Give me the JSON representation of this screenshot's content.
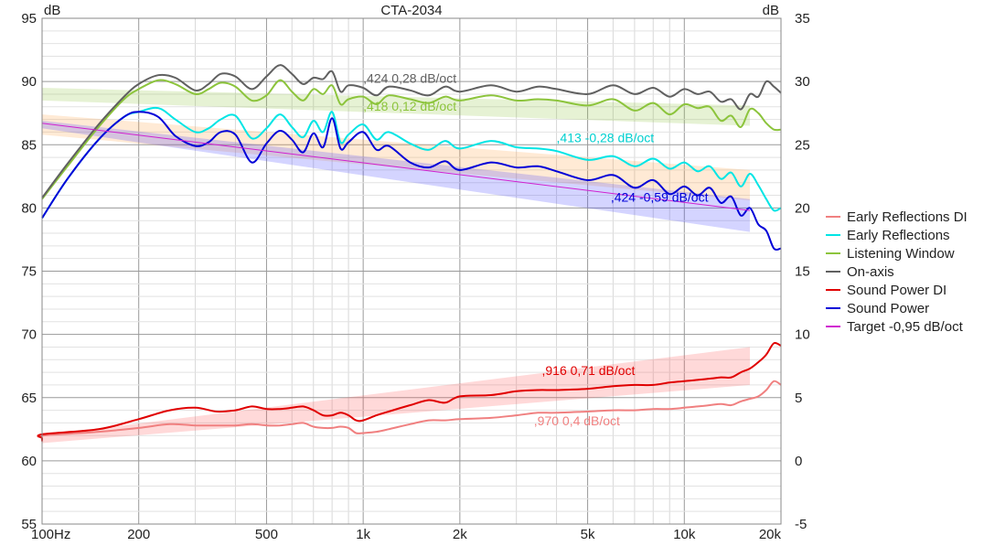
{
  "chart_data": {
    "type": "line",
    "title": "CTA-2034",
    "left_unit": "dB",
    "right_unit": "dB",
    "x_scale": "log",
    "xlim": [
      20,
      20000
    ],
    "ylim_left": [
      55,
      95
    ],
    "ylim_right": [
      -5,
      35
    ],
    "x_ticks": [
      {
        "v": 100,
        "label": "100Hz"
      },
      {
        "v": 200,
        "label": "200"
      },
      {
        "v": 500,
        "label": "500"
      },
      {
        "v": 1000,
        "label": "1k"
      },
      {
        "v": 2000,
        "label": "2k"
      },
      {
        "v": 5000,
        "label": "5k"
      },
      {
        "v": 10000,
        "label": "10k"
      },
      {
        "v": 20000,
        "label": "20k"
      }
    ],
    "y_left_ticks": [
      "95",
      "90",
      "85",
      "80",
      "75",
      "70",
      "65",
      "60",
      "55"
    ],
    "y_right_ticks": [
      "35",
      "30",
      "25",
      "20",
      "15",
      "10",
      "5",
      "0",
      "-5"
    ],
    "grid": true,
    "legend_position": "right",
    "legend": [
      {
        "label": "Early Reflections DI",
        "color": "#f08080"
      },
      {
        "label": "Early Reflections",
        "color": "#00e5e5"
      },
      {
        "label": "Listening Window",
        "color": "#8cc43c"
      },
      {
        "label": "On-axis",
        "color": "#606060"
      },
      {
        "label": "Sound Power DI",
        "color": "#e00000"
      },
      {
        "label": "Sound Power",
        "color": "#0000d8"
      },
      {
        "label": "Target -0,95 dB/oct",
        "color": "#d020d0"
      }
    ],
    "annotations": [
      {
        "text": ",424  0,28 dB/oct",
        "color": "#606060",
        "x": 1000,
        "y": 89.9
      },
      {
        "text": ",418  0,12 dB/oct",
        "color": "#8cc43c",
        "x": 1000,
        "y": 87.7
      },
      {
        "text": ",413  -0,28 dB/oct",
        "color": "#00d0d0",
        "x": 4000,
        "y": 85.2
      },
      {
        "text": ",424  -0,59 dB/oct",
        "color": "#0000d8",
        "x": 5900,
        "y": 80.5
      },
      {
        "text": ",916  0,71 dB/oct",
        "color": "#e00000",
        "x": 3600,
        "y": 66.8
      },
      {
        "text": ",970  0,4 dB/oct",
        "color": "#f08080",
        "x": 3400,
        "y": 62.8
      }
    ],
    "series": [
      {
        "name": "On-axis",
        "axis": "left",
        "color": "#606060",
        "x": [
          100,
          120,
          150,
          180,
          200,
          230,
          260,
          300,
          330,
          360,
          400,
          450,
          500,
          550,
          600,
          650,
          700,
          750,
          800,
          850,
          900,
          1000,
          1100,
          1200,
          1400,
          1600,
          1800,
          2000,
          2500,
          3000,
          3500,
          4000,
          5000,
          6000,
          7000,
          8000,
          9000,
          10000,
          11000,
          12000,
          13000,
          14000,
          15000,
          16000,
          17000,
          18000,
          19000,
          20000
        ],
        "y": [
          80.8,
          83.5,
          86.6,
          88.8,
          89.8,
          90.5,
          90.3,
          89.3,
          89.8,
          90.6,
          90.4,
          89.4,
          90.4,
          91.3,
          90.6,
          89.8,
          90.3,
          90.2,
          90.8,
          89.2,
          89.7,
          89.5,
          88.9,
          89.6,
          89.3,
          88.9,
          89.6,
          89.2,
          89.7,
          89.2,
          89.6,
          89.4,
          89.0,
          89.7,
          89.0,
          89.5,
          88.8,
          89.4,
          89.0,
          89.2,
          88.4,
          88.6,
          87.8,
          89.0,
          88.8,
          90.0,
          89.6,
          89.1
        ]
      },
      {
        "name": "Listening Window",
        "axis": "left",
        "color": "#8cc43c",
        "x": [
          100,
          120,
          150,
          180,
          200,
          230,
          260,
          300,
          330,
          360,
          400,
          450,
          500,
          550,
          600,
          650,
          700,
          750,
          800,
          850,
          900,
          1000,
          1100,
          1200,
          1400,
          1600,
          1800,
          2000,
          2500,
          3000,
          3500,
          4000,
          5000,
          6000,
          7000,
          8000,
          9000,
          10000,
          11000,
          12000,
          13000,
          14000,
          15000,
          16000,
          17000,
          18000,
          19000,
          20000
        ],
        "y": [
          80.7,
          83.3,
          86.4,
          88.6,
          89.4,
          90.1,
          89.8,
          89.0,
          89.4,
          89.9,
          89.6,
          88.5,
          88.9,
          90.1,
          89.2,
          88.5,
          89.4,
          89.0,
          89.7,
          88.2,
          88.6,
          88.8,
          88.2,
          88.9,
          88.6,
          88.3,
          88.8,
          88.5,
          88.9,
          88.5,
          88.6,
          88.5,
          88.1,
          88.6,
          87.7,
          88.3,
          87.4,
          88.2,
          87.9,
          88.0,
          86.9,
          87.3,
          86.4,
          87.8,
          87.5,
          86.7,
          86.2,
          86.2
        ]
      },
      {
        "name": "Early Reflections",
        "axis": "left",
        "color": "#00e5e5",
        "x": [
          100,
          120,
          150,
          180,
          200,
          230,
          260,
          300,
          330,
          360,
          400,
          450,
          500,
          550,
          600,
          650,
          700,
          750,
          800,
          850,
          900,
          1000,
          1100,
          1200,
          1400,
          1600,
          1800,
          2000,
          2500,
          3000,
          3500,
          4000,
          5000,
          6000,
          7000,
          8000,
          9000,
          10000,
          11000,
          12000,
          13000,
          14000,
          15000,
          16000,
          17000,
          18000,
          19000,
          20000
        ],
        "y": [
          79.2,
          82.3,
          85.4,
          87.2,
          87.6,
          87.9,
          87.0,
          86.0,
          86.3,
          87.0,
          87.3,
          85.5,
          86.3,
          87.4,
          86.4,
          85.6,
          86.9,
          86.0,
          87.6,
          85.2,
          85.8,
          86.6,
          85.4,
          86.0,
          85.1,
          84.6,
          85.3,
          84.7,
          85.3,
          84.8,
          84.7,
          84.5,
          83.8,
          84.1,
          83.3,
          83.9,
          83.1,
          83.6,
          82.9,
          83.3,
          82.3,
          82.8,
          81.7,
          82.7,
          81.8,
          80.7,
          79.8,
          80.0
        ]
      },
      {
        "name": "Sound Power",
        "axis": "left",
        "color": "#0000d8",
        "x": [
          100,
          120,
          150,
          180,
          200,
          230,
          260,
          300,
          330,
          360,
          400,
          450,
          500,
          550,
          600,
          650,
          700,
          750,
          800,
          850,
          900,
          1000,
          1100,
          1200,
          1400,
          1600,
          1800,
          2000,
          2500,
          3000,
          3500,
          4000,
          5000,
          6000,
          7000,
          8000,
          9000,
          10000,
          11000,
          12000,
          13000,
          14000,
          15000,
          16000,
          17000,
          18000,
          19000,
          20000
        ],
        "y": [
          79.2,
          82.3,
          85.4,
          87.2,
          87.6,
          87.2,
          85.7,
          84.9,
          85.2,
          86.0,
          85.8,
          83.6,
          85.1,
          86.1,
          85.4,
          84.4,
          85.9,
          84.8,
          87.1,
          84.7,
          85.2,
          86.0,
          84.6,
          84.9,
          83.6,
          83.2,
          83.7,
          83.0,
          83.6,
          83.2,
          83.3,
          82.9,
          82.2,
          82.6,
          81.6,
          82.2,
          81.1,
          81.7,
          81.0,
          81.6,
          80.4,
          80.9,
          79.4,
          80.0,
          78.7,
          78.2,
          76.8,
          76.8
        ]
      },
      {
        "name": "Sound Power DI",
        "axis": "right",
        "color": "#e00000",
        "x": [
          20,
          60,
          100,
          150,
          200,
          250,
          300,
          350,
          400,
          450,
          500,
          550,
          600,
          650,
          700,
          750,
          800,
          850,
          900,
          950,
          1000,
          1100,
          1200,
          1400,
          1600,
          1800,
          2000,
          2500,
          3000,
          3500,
          4000,
          5000,
          6000,
          7000,
          8000,
          9000,
          10000,
          11000,
          12000,
          13000,
          14000,
          15000,
          16000,
          17000,
          18000,
          19000,
          20000
        ],
        "y": [
          1.6,
          1.8,
          2.1,
          2.5,
          3.3,
          4.0,
          4.2,
          3.9,
          4.0,
          4.3,
          4.1,
          4.1,
          4.2,
          4.3,
          4.0,
          3.6,
          3.6,
          3.8,
          3.6,
          3.2,
          3.2,
          3.6,
          3.9,
          4.4,
          4.8,
          4.6,
          5.1,
          5.2,
          5.5,
          5.6,
          5.6,
          5.7,
          5.9,
          6.0,
          6.0,
          6.2,
          6.3,
          6.4,
          6.5,
          6.6,
          6.6,
          7.0,
          7.3,
          7.8,
          8.4,
          9.3,
          9.1
        ]
      },
      {
        "name": "Early Reflections DI",
        "axis": "right",
        "color": "#f08080",
        "x": [
          20,
          60,
          100,
          150,
          200,
          250,
          300,
          350,
          400,
          450,
          500,
          550,
          600,
          650,
          700,
          750,
          800,
          850,
          900,
          950,
          1000,
          1100,
          1200,
          1400,
          1600,
          1800,
          2000,
          2500,
          3000,
          3500,
          4000,
          5000,
          6000,
          7000,
          8000,
          9000,
          10000,
          11000,
          12000,
          13000,
          14000,
          15000,
          16000,
          17000,
          18000,
          19000,
          20000
        ],
        "y": [
          1.5,
          1.8,
          2.0,
          2.3,
          2.6,
          2.9,
          2.8,
          2.8,
          2.8,
          2.9,
          2.8,
          2.8,
          2.9,
          3.0,
          2.7,
          2.6,
          2.6,
          2.7,
          2.6,
          2.2,
          2.2,
          2.3,
          2.5,
          2.9,
          3.2,
          3.2,
          3.3,
          3.4,
          3.6,
          3.8,
          3.8,
          3.9,
          4.0,
          4.0,
          4.1,
          4.1,
          4.2,
          4.3,
          4.4,
          4.5,
          4.4,
          4.7,
          4.9,
          5.1,
          5.6,
          6.3,
          6.0
        ]
      },
      {
        "name": "Target -0,95 dB/oct",
        "axis": "left",
        "color": "#d020d0",
        "x": [
          100,
          16000
        ],
        "y": [
          86.7,
          79.8
        ]
      }
    ],
    "bands": [
      {
        "axis": "left",
        "color": "#8cc43c",
        "x": [
          100,
          16000
        ],
        "upper": [
          89.5,
          88.1
        ],
        "lower": [
          88.5,
          86.5
        ]
      },
      {
        "axis": "left",
        "color": "#ffa040",
        "x": [
          100,
          16000
        ],
        "upper": [
          87.4,
          83.0
        ],
        "lower": [
          85.8,
          80.6
        ]
      },
      {
        "axis": "left",
        "color": "#3c3cff",
        "x": [
          100,
          16000
        ],
        "upper": [
          86.9,
          80.7
        ],
        "lower": [
          86.3,
          78.1
        ]
      },
      {
        "axis": "right",
        "color": "#ff5050",
        "x": [
          20,
          16000
        ],
        "upper": [
          2.0,
          9.0
        ],
        "lower": [
          1.4,
          6.0
        ]
      }
    ]
  }
}
